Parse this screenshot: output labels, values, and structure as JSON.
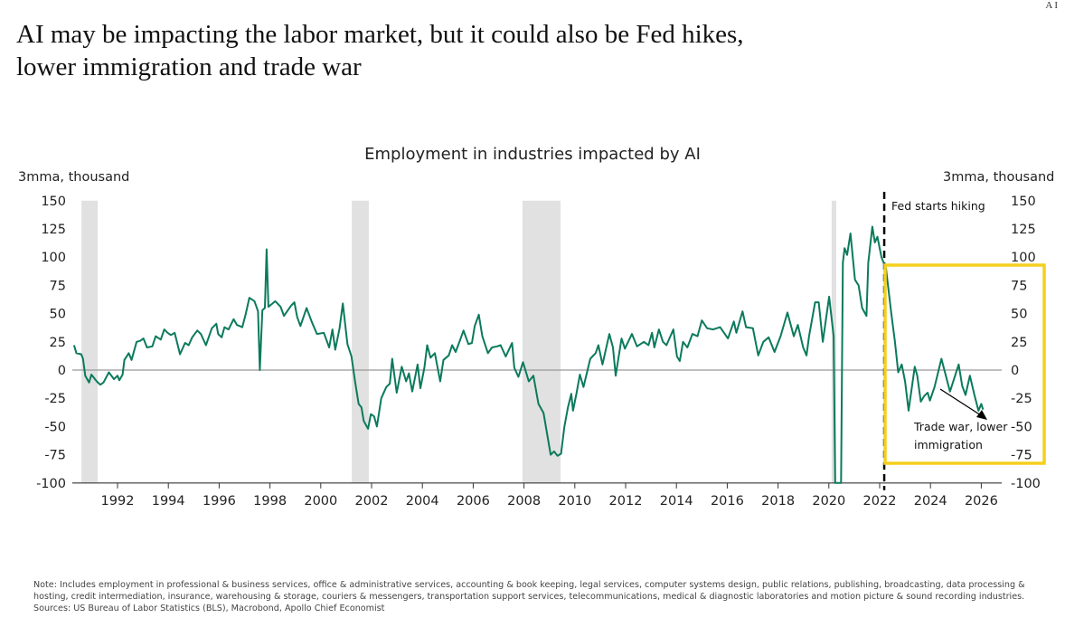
{
  "corner_mark": "AI",
  "header": {
    "title_line1": "AI may be impacting the labor market, but it could also be Fed hikes,",
    "title_line2": "lower immigration and trade war"
  },
  "chart_data": {
    "type": "line",
    "title": "Employment in industries impacted by AI",
    "ylabel_left": "3mma, thousand",
    "ylabel_right": "3mma, thousand",
    "ylim": [
      -100,
      150
    ],
    "yticks": [
      150,
      125,
      100,
      75,
      50,
      25,
      0,
      -25,
      -50,
      -75,
      -100
    ],
    "xticks": [
      1992,
      1994,
      1996,
      1998,
      2000,
      2002,
      2004,
      2006,
      2008,
      2010,
      2012,
      2014,
      2016,
      2018,
      2020,
      2022,
      2024,
      2026
    ],
    "grid": false,
    "zero_line": true,
    "line_color": "#0b7a5c",
    "recession_color": "#e0e1e0",
    "recessions": [
      [
        1990.58,
        1991.22
      ],
      [
        2001.22,
        2001.89
      ],
      [
        2007.94,
        2009.44
      ],
      [
        2020.11,
        2020.29
      ]
    ],
    "annotations": {
      "fed_line_year": 2022.18,
      "fed_label": "Fed starts hiking",
      "box_color": "#f5cf1f",
      "arrow_label_line1": "Trade war, lower",
      "arrow_label_line2": "immigration"
    },
    "series": [
      {
        "x": [
          1990.29,
          1990.38,
          1990.57,
          1990.64,
          1990.73,
          1990.88,
          1990.97,
          1991.18,
          1991.32,
          1991.45,
          1991.66,
          1991.86,
          1992.0,
          1992.07,
          1992.2,
          1992.27,
          1992.44,
          1992.55,
          1992.75,
          1992.9,
          1993.02,
          1993.16,
          1993.37,
          1993.5,
          1993.7,
          1993.84,
          1993.97,
          1994.1,
          1994.25,
          1994.46,
          1994.66,
          1994.8,
          1994.94,
          1995.14,
          1995.28,
          1995.48,
          1995.71,
          1995.89,
          1995.96,
          1996.1,
          1996.21,
          1996.37,
          1996.57,
          1996.7,
          1996.91,
          1997.05,
          1997.19,
          1997.39,
          1997.53,
          1997.6,
          1997.7,
          1997.8,
          1997.87,
          1997.94,
          1998.21,
          1998.42,
          1998.55,
          1998.83,
          1998.96,
          1999.07,
          1999.2,
          1999.44,
          1999.64,
          1999.85,
          2000.12,
          2000.33,
          2000.46,
          2000.57,
          2000.74,
          2000.87,
          2001.05,
          2001.21,
          2001.35,
          2001.49,
          2001.6,
          2001.69,
          2001.86,
          2001.97,
          2002.1,
          2002.21,
          2002.38,
          2002.58,
          2002.72,
          2002.81,
          2002.99,
          2003.19,
          2003.36,
          2003.47,
          2003.6,
          2003.81,
          2003.92,
          2004.08,
          2004.19,
          2004.32,
          2004.49,
          2004.7,
          2004.83,
          2005.04,
          2005.17,
          2005.31,
          2005.49,
          2005.62,
          2005.81,
          2005.95,
          2006.06,
          2006.22,
          2006.36,
          2006.58,
          2006.74,
          2006.94,
          2007.08,
          2007.28,
          2007.53,
          2007.62,
          2007.78,
          2007.96,
          2008.19,
          2008.37,
          2008.57,
          2008.77,
          2009.05,
          2009.18,
          2009.32,
          2009.46,
          2009.59,
          2009.73,
          2009.86,
          2009.93,
          2010.07,
          2010.2,
          2010.34,
          2010.48,
          2010.61,
          2010.82,
          2010.93,
          2011.09,
          2011.36,
          2011.5,
          2011.61,
          2011.84,
          2011.97,
          2012.25,
          2012.45,
          2012.72,
          2012.9,
          2013.04,
          2013.13,
          2013.31,
          2013.47,
          2013.61,
          2013.88,
          2014.02,
          2014.13,
          2014.26,
          2014.43,
          2014.63,
          2014.83,
          2015.0,
          2015.21,
          2015.45,
          2015.72,
          2016.03,
          2016.26,
          2016.36,
          2016.6,
          2016.74,
          2017.01,
          2017.22,
          2017.42,
          2017.63,
          2017.86,
          2018.1,
          2018.37,
          2018.62,
          2018.78,
          2018.99,
          2019.12,
          2019.22,
          2019.46,
          2019.6,
          2019.76,
          2020.01,
          2020.19,
          2020.25,
          2020.48,
          2020.55,
          2020.62,
          2020.72,
          2020.85,
          2021.03,
          2021.17,
          2021.31,
          2021.48,
          2021.55,
          2021.71,
          2021.81,
          2021.91,
          2022.07,
          2022.25,
          2022.46,
          2022.6,
          2022.73,
          2022.87,
          2023.0,
          2023.14,
          2023.38,
          2023.48,
          2023.62,
          2023.75,
          2023.89,
          2023.98,
          2024.16,
          2024.43,
          2024.77,
          2025.11,
          2025.25,
          2025.38,
          2025.55,
          2025.73,
          2025.89,
          2026.0,
          2026.07
        ],
        "y": [
          22,
          15,
          14,
          10,
          -5,
          -11,
          -4,
          -10,
          -13,
          -11,
          -2,
          -8,
          -5,
          -9,
          -4,
          9,
          15,
          9,
          25,
          26,
          28,
          20,
          21,
          30,
          27,
          36,
          33,
          31,
          33,
          14,
          24,
          22,
          29,
          35,
          32,
          22,
          37,
          41,
          32,
          29,
          38,
          36,
          45,
          40,
          38,
          50,
          64,
          61,
          52,
          0,
          53,
          55,
          107,
          56,
          61,
          56,
          48,
          57,
          60,
          47,
          39,
          55,
          43,
          32,
          33,
          20,
          36,
          18,
          37,
          59,
          23,
          12,
          -10,
          -30,
          -33,
          -45,
          -52,
          -39,
          -41,
          -50,
          -25,
          -15,
          -12,
          10,
          -20,
          3,
          -10,
          -3,
          -19,
          5,
          -16,
          2,
          22,
          11,
          15,
          -10,
          9,
          13,
          22,
          16,
          27,
          35,
          23,
          24,
          39,
          49,
          30,
          15,
          20,
          21,
          22,
          12,
          24,
          2,
          -6,
          7,
          -10,
          -5,
          -30,
          -38,
          -75,
          -72,
          -76,
          -74,
          -50,
          -33,
          -21,
          -36,
          -20,
          -4,
          -15,
          -2,
          10,
          15,
          22,
          5,
          32,
          20,
          -5,
          28,
          19,
          32,
          21,
          25,
          22,
          33,
          20,
          36,
          25,
          22,
          36,
          12,
          8,
          25,
          20,
          32,
          30,
          44,
          37,
          36,
          38,
          28,
          43,
          33,
          52,
          38,
          37,
          13,
          25,
          29,
          16,
          30,
          51,
          30,
          40,
          20,
          13,
          30,
          60,
          60,
          25,
          65,
          30,
          -100,
          -100,
          95,
          108,
          102,
          121,
          80,
          75,
          55,
          48,
          95,
          127,
          113,
          118,
          100,
          90,
          50,
          25,
          -2,
          5,
          -10,
          -36,
          3,
          -5,
          -28,
          -23,
          -20,
          -27,
          -15,
          10,
          -19,
          5,
          -14,
          -22,
          -5,
          -22,
          -36,
          -30,
          -35
        ]
      }
    ]
  },
  "footer": {
    "note": "Note: Includes employment in professional & business services, office & administrative services, accounting & book keeping, legal services, computer systems design, public relations, publishing, broadcasting, data processing & hosting, credit intermediation, insurance, warehousing & storage, couriers & messengers, transportation support services, telecommunications, medical & diagnostic laboratories and motion picture & sound recording industries. Sources: US Bureau of Labor Statistics (BLS), Macrobond, Apollo Chief Economist"
  }
}
